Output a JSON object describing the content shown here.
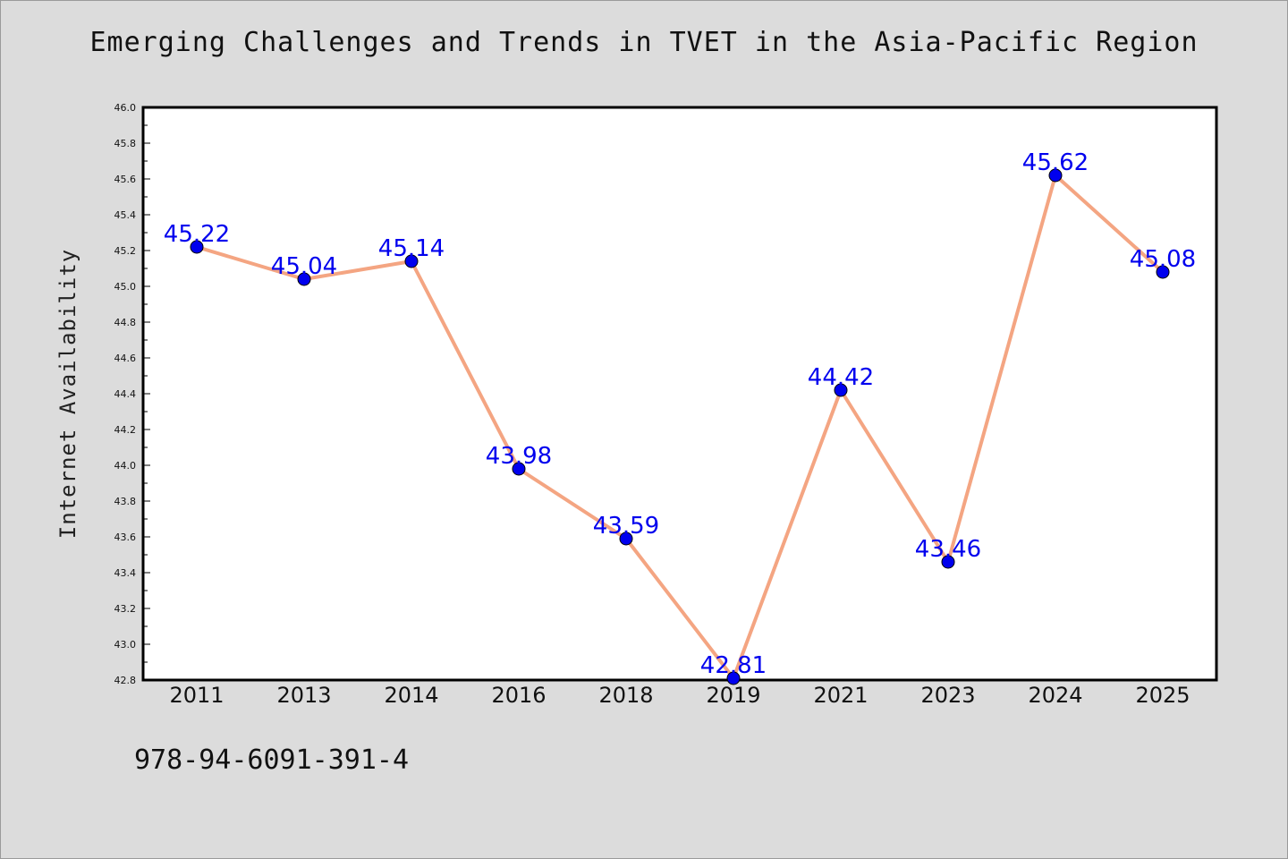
{
  "chart_data": {
    "type": "line",
    "title": "Emerging Challenges and Trends in TVET in the Asia-Pacific Region",
    "xlabel": "",
    "ylabel": "Internet Availability",
    "categories": [
      "2011",
      "2013",
      "2014",
      "2016",
      "2018",
      "2019",
      "2021",
      "2023",
      "2024",
      "2025"
    ],
    "series": [
      {
        "values": [
          45.22,
          45.04,
          45.14,
          43.98,
          43.59,
          42.81,
          44.42,
          43.46,
          45.62,
          45.08
        ]
      }
    ],
    "data_labels": [
      "45.22",
      "45.04",
      "45.14",
      "43.98",
      "43.59",
      "42.81",
      "44.42",
      "43.46",
      "45.62",
      "45.08"
    ],
    "ylim": [
      42.8,
      46.0
    ],
    "yticks": [
      "42.8",
      "43.0",
      "43.2",
      "43.4",
      "43.6",
      "43.8",
      "44.0",
      "44.2",
      "44.4",
      "44.6",
      "44.8",
      "45.0",
      "45.2",
      "45.4",
      "45.6",
      "45.8",
      "46.0"
    ],
    "grid": false,
    "legend": "none",
    "colors": {
      "line": "#f4a582",
      "marker": "#0000ee",
      "label": "#0000ee",
      "plot_background": "#ffffff",
      "figure_background": "#dcdcdc"
    }
  },
  "footer": {
    "isbn": "978-94-6091-391-4"
  }
}
